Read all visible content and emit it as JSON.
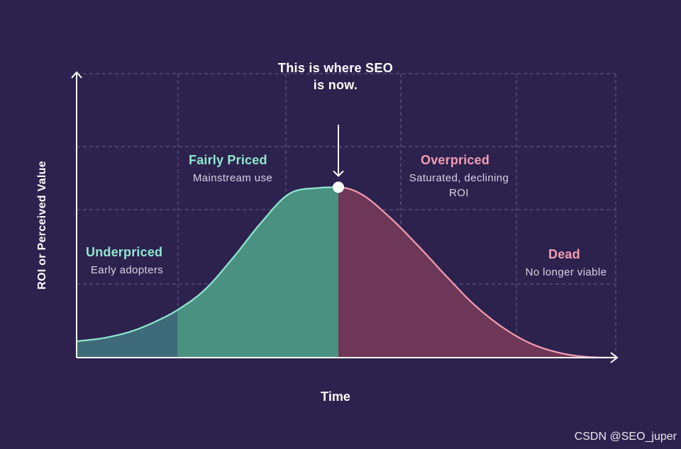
{
  "chart_data": {
    "type": "area",
    "title": "",
    "xlabel": "Time",
    "ylabel": "ROI or Perceived Value",
    "xlim": [
      0,
      760
    ],
    "ylim": [
      0,
      4
    ],
    "grid": true,
    "peak_x": 369,
    "curve": {
      "x": [
        0,
        40,
        80,
        120,
        142,
        180,
        220,
        260,
        300,
        340,
        369,
        400,
        440,
        480,
        520,
        560,
        600,
        640,
        680,
        720,
        760
      ],
      "y": [
        0.23,
        0.28,
        0.38,
        0.55,
        0.67,
        0.95,
        1.4,
        1.9,
        2.31,
        2.39,
        2.4,
        2.31,
        1.99,
        1.59,
        1.16,
        0.75,
        0.43,
        0.2,
        0.07,
        0.01,
        0.0
      ]
    },
    "phases": [
      {
        "name": "Underpriced",
        "description": "Early adopters",
        "x_start": 0,
        "x_end": 142,
        "color": "#3e6a79",
        "title_color": "#8fe8cf"
      },
      {
        "name": "Fairly Priced",
        "description": "Mainstream use",
        "x_start": 142,
        "x_end": 369,
        "color": "#4a9181",
        "title_color": "#8fe8cf"
      },
      {
        "name": "Overpriced",
        "description": "Saturated, declining ROI",
        "x_start": 369,
        "x_end": 620,
        "color": "#6e3657",
        "title_color": "#f29fb1"
      },
      {
        "name": "Dead",
        "description": "No longer viable",
        "x_start": 620,
        "x_end": 760,
        "color": "#6e3657",
        "title_color": "#f29fb1"
      }
    ],
    "annotation": "This is where SEO is now.",
    "line_colors": {
      "rising": "#8fe8cf",
      "falling": "#f29fb1"
    },
    "axis_color": "#ffffff",
    "grid_color": "#6a5f8a"
  },
  "callout": {
    "line1": "This is where SEO",
    "line2": "is now."
  },
  "labels": {
    "underpriced": {
      "title": "Underpriced",
      "sub": "Early adopters"
    },
    "fairly": {
      "title": "Fairly Priced",
      "sub": "Mainstream use"
    },
    "overpriced": {
      "title": "Overpriced",
      "sub1": "Saturated, declining",
      "sub2": "ROI"
    },
    "dead": {
      "title": "Dead",
      "sub": "No longer viable"
    }
  },
  "axes": {
    "x": "Time",
    "y": "ROI or Perceived Value"
  },
  "watermark": "CSDN @SEO_juper"
}
